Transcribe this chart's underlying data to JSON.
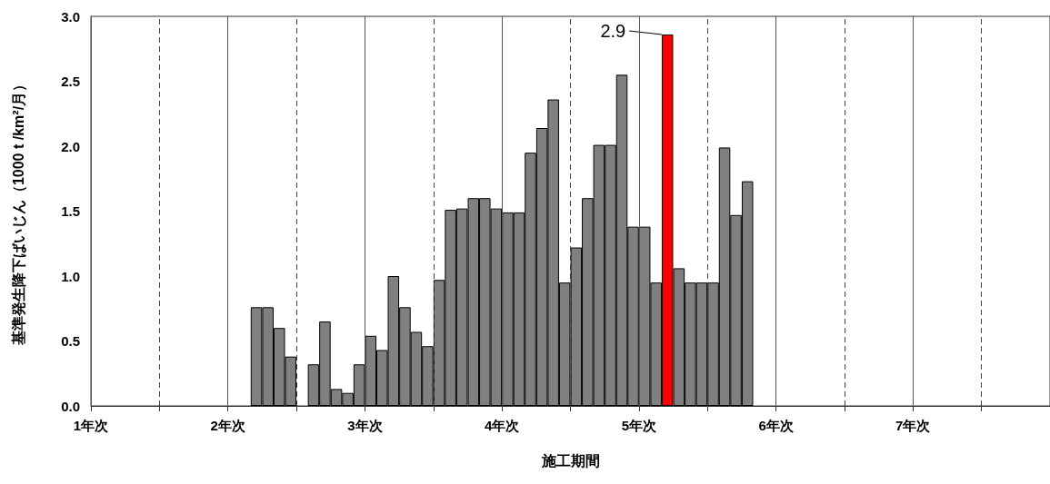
{
  "chart_data": {
    "type": "bar",
    "xlabel": "施工期間",
    "ylabel": "基準発生降下ばいじん（1000 t /km²/月）",
    "x": [
      2.208,
      2.292,
      2.375,
      2.458,
      2.625,
      2.708,
      2.792,
      2.875,
      2.958,
      3.042,
      3.125,
      3.208,
      3.292,
      3.375,
      3.458,
      3.542,
      3.625,
      3.708,
      3.792,
      3.875,
      3.958,
      4.042,
      4.125,
      4.208,
      4.292,
      4.375,
      4.458,
      4.542,
      4.625,
      4.708,
      4.792,
      4.875,
      4.958,
      5.042,
      5.125,
      5.208,
      5.292,
      5.375,
      5.458,
      5.542,
      5.625,
      5.708,
      5.792
    ],
    "values": [
      0.76,
      0.76,
      0.6,
      0.38,
      0.32,
      0.65,
      0.13,
      0.1,
      0.32,
      0.54,
      0.43,
      1.0,
      0.76,
      0.57,
      0.46,
      0.97,
      1.51,
      1.52,
      1.6,
      1.6,
      1.52,
      1.49,
      1.49,
      1.95,
      2.14,
      2.36,
      0.95,
      1.22,
      1.6,
      2.01,
      2.01,
      2.55,
      1.38,
      1.38,
      0.95,
      2.86,
      1.06,
      0.95,
      0.95,
      0.95,
      1.99,
      1.47,
      1.73
    ],
    "colors": [
      "#808080",
      "#808080",
      "#808080",
      "#808080",
      "#808080",
      "#808080",
      "#808080",
      "#808080",
      "#808080",
      "#808080",
      "#808080",
      "#808080",
      "#808080",
      "#808080",
      "#808080",
      "#808080",
      "#808080",
      "#808080",
      "#808080",
      "#808080",
      "#808080",
      "#808080",
      "#808080",
      "#808080",
      "#808080",
      "#808080",
      "#808080",
      "#808080",
      "#808080",
      "#808080",
      "#808080",
      "#808080",
      "#808080",
      "#808080",
      "#808080",
      "#ff0000",
      "#808080",
      "#808080",
      "#808080",
      "#808080",
      "#808080",
      "#808080",
      "#808080"
    ],
    "annotations": [
      {
        "text": "2.9",
        "x": 5.208,
        "y": 2.86
      }
    ],
    "xlim": [
      1,
      8
    ],
    "xticks": [
      {
        "value": 1,
        "label": "1年次"
      },
      {
        "value": 1.5,
        "label": null
      },
      {
        "value": 2,
        "label": "2年次"
      },
      {
        "value": 2.5,
        "label": null
      },
      {
        "value": 3,
        "label": "3年次"
      },
      {
        "value": 3.5,
        "label": null
      },
      {
        "value": 4,
        "label": "4年次"
      },
      {
        "value": 4.5,
        "label": null
      },
      {
        "value": 5,
        "label": "5年次"
      },
      {
        "value": 5.5,
        "label": null
      },
      {
        "value": 6,
        "label": "6年次"
      },
      {
        "value": 6.5,
        "label": null
      },
      {
        "value": 7,
        "label": "7年次"
      },
      {
        "value": 7.5,
        "label": null
      }
    ],
    "ylim": [
      0,
      3
    ],
    "yticks": [
      {
        "value": 0,
        "label": "0.0"
      },
      {
        "value": 0.5,
        "label": "0.5"
      },
      {
        "value": 1,
        "label": "1.0"
      },
      {
        "value": 1.5,
        "label": "1.5"
      },
      {
        "value": 2,
        "label": "2.0"
      },
      {
        "value": 2.5,
        "label": "2.5"
      },
      {
        "value": 3,
        "label": "3.0"
      }
    ],
    "grid": "x"
  }
}
